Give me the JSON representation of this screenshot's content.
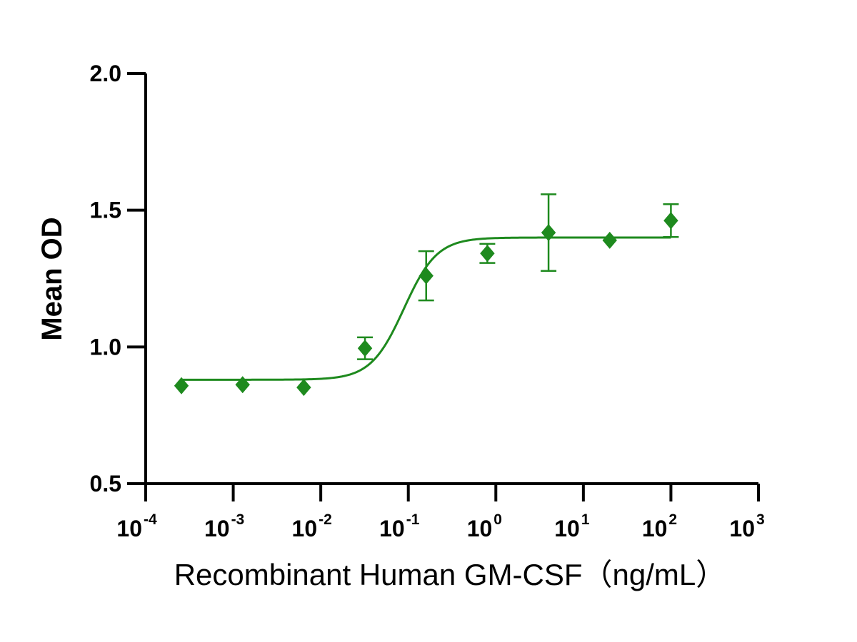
{
  "chart_data": {
    "type": "scatter",
    "xscale": "log10",
    "xlabel": "Recombinant Human GM-CSF（ng/mL）",
    "ylabel": "Mean OD",
    "xlim_exponents": [
      -4,
      3
    ],
    "ylim": [
      0.5,
      2.0
    ],
    "yticks": [
      {
        "value": 0.5,
        "label": "0.5"
      },
      {
        "value": 1.0,
        "label": "1.0"
      },
      {
        "value": 1.5,
        "label": "1.5"
      },
      {
        "value": 2.0,
        "label": "2.0"
      }
    ],
    "xticks": [
      {
        "exponent": -4,
        "base": "10",
        "exp": "-4"
      },
      {
        "exponent": -3,
        "base": "10",
        "exp": "-3"
      },
      {
        "exponent": -2,
        "base": "10",
        "exp": "-2"
      },
      {
        "exponent": -1,
        "base": "10",
        "exp": "-1"
      },
      {
        "exponent": 0,
        "base": "10",
        "exp": "0"
      },
      {
        "exponent": 1,
        "base": "10",
        "exp": "1"
      },
      {
        "exponent": 2,
        "base": "10",
        "exp": "2"
      },
      {
        "exponent": 3,
        "base": "10",
        "exp": "3"
      }
    ],
    "color": "#1e8a1e",
    "series": [
      {
        "name": "Mean OD",
        "points": [
          {
            "x": 0.000256,
            "y": 0.858,
            "err": 0.0
          },
          {
            "x": 0.00128,
            "y": 0.862,
            "err": 0.0
          },
          {
            "x": 0.0064,
            "y": 0.852,
            "err": 0.0
          },
          {
            "x": 0.032,
            "y": 0.995,
            "err": 0.04
          },
          {
            "x": 0.16,
            "y": 1.26,
            "err": 0.09
          },
          {
            "x": 0.8,
            "y": 1.342,
            "err": 0.035
          },
          {
            "x": 4.0,
            "y": 1.418,
            "err": 0.14
          },
          {
            "x": 20.0,
            "y": 1.39,
            "err": 0.0
          },
          {
            "x": 100.0,
            "y": 1.462,
            "err": 0.06
          }
        ]
      }
    ],
    "fit": {
      "model": "4PL",
      "bottom": 0.88,
      "top": 1.4,
      "log_ec50": -1.05,
      "hill": 2.3,
      "x_range_exponents": [
        -3.6,
        2.0
      ]
    }
  }
}
